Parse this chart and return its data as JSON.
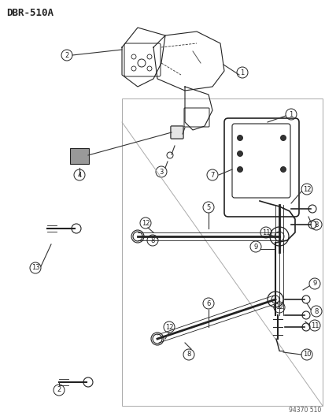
{
  "title": "DBR-510A",
  "footer": "94370 510",
  "bg_color": "#ffffff",
  "fig_width": 4.14,
  "fig_height": 5.33,
  "dpi": 100
}
